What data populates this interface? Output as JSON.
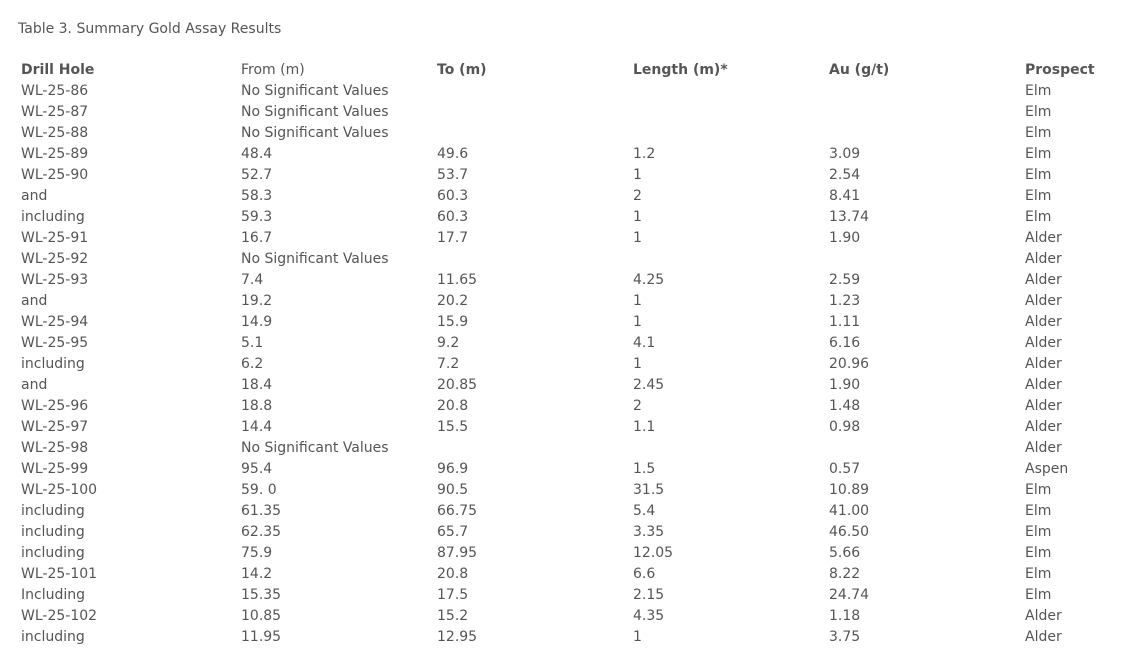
{
  "caption": "Table 3. Summary Gold Assay Results",
  "headers": {
    "drill_hole": "Drill Hole",
    "from": "From (m)",
    "to": "To (m)",
    "length": "Length (m)*",
    "au": "Au (g/t)",
    "prospect": "Prospect"
  },
  "no_values_text": "No Significant Values",
  "rows": [
    {
      "hole": "WL-25-86",
      "nsv": true,
      "prospect": "Elm"
    },
    {
      "hole": "WL-25-87",
      "nsv": true,
      "prospect": "Elm"
    },
    {
      "hole": "WL-25-88",
      "nsv": true,
      "prospect": "Elm"
    },
    {
      "hole": "WL-25-89",
      "from": "48.4",
      "to": "49.6",
      "length": "1.2",
      "au": "3.09",
      "prospect": "Elm"
    },
    {
      "hole": "WL-25-90",
      "from": "52.7",
      "to": "53.7",
      "length": "1",
      "au": "2.54",
      "prospect": "Elm"
    },
    {
      "hole": "and",
      "from": "58.3",
      "to": "60.3",
      "length": "2",
      "au": "8.41",
      "prospect": "Elm"
    },
    {
      "hole": "including",
      "from": "59.3",
      "to": "60.3",
      "length": "1",
      "au": "13.74",
      "prospect": "Elm"
    },
    {
      "hole": "WL-25-91",
      "from": "16.7",
      "to": "17.7",
      "length": "1",
      "au": "1.90",
      "prospect": "Alder"
    },
    {
      "hole": "WL-25-92",
      "nsv": true,
      "prospect": "Alder"
    },
    {
      "hole": "WL-25-93",
      "from": "7.4",
      "to": "11.65",
      "length": "4.25",
      "au": "2.59",
      "prospect": "Alder"
    },
    {
      "hole": "and",
      "from": "19.2",
      "to": "20.2",
      "length": "1",
      "au": "1.23",
      "prospect": "Alder"
    },
    {
      "hole": "WL-25-94",
      "from": "14.9",
      "to": "15.9",
      "length": "1",
      "au": "1.11",
      "prospect": "Alder"
    },
    {
      "hole": "WL-25-95",
      "from": "5.1",
      "to": "9.2",
      "length": "4.1",
      "au": "6.16",
      "prospect": "Alder"
    },
    {
      "hole": "including",
      "from": "6.2",
      "to": "7.2",
      "length": "1",
      "au": "20.96",
      "prospect": "Alder"
    },
    {
      "hole": "and",
      "from": "18.4",
      "to": "20.85",
      "length": "2.45",
      "au": "1.90",
      "prospect": "Alder"
    },
    {
      "hole": "WL-25-96",
      "from": "18.8",
      "to": "20.8",
      "length": "2",
      "au": "1.48",
      "prospect": "Alder"
    },
    {
      "hole": "WL-25-97",
      "from": "14.4",
      "to": "15.5",
      "length": "1.1",
      "au": "0.98",
      "prospect": "Alder"
    },
    {
      "hole": "WL-25-98",
      "nsv": true,
      "prospect": "Alder"
    },
    {
      "hole": "WL-25-99",
      "from": "95.4",
      "to": "96.9",
      "length": "1.5",
      "au": "0.57",
      "prospect": "Aspen"
    },
    {
      "hole": "WL-25-100",
      "from": "59. 0",
      "to": "90.5",
      "length": "31.5",
      "au": "10.89",
      "prospect": "Elm"
    },
    {
      "hole": "including",
      "from": "61.35",
      "to": "66.75",
      "length": "5.4",
      "au": "41.00",
      "prospect": "Elm"
    },
    {
      "hole": "including",
      "from": "62.35",
      "to": "65.7",
      "length": "3.35",
      "au": "46.50",
      "prospect": "Elm"
    },
    {
      "hole": "including",
      "from": "75.9",
      "to": "87.95",
      "length": "12.05",
      "au": "5.66",
      "prospect": "Elm"
    },
    {
      "hole": "WL-25-101",
      "from": "14.2",
      "to": "20.8",
      "length": "6.6",
      "au": "8.22",
      "prospect": "Elm"
    },
    {
      "hole": "Including",
      "from": "15.35",
      "to": "17.5",
      "length": "2.15",
      "au": "24.74",
      "prospect": "Elm"
    },
    {
      "hole": "WL-25-102",
      "from": "10.85",
      "to": "15.2",
      "length": "4.35",
      "au": "1.18",
      "prospect": "Alder"
    },
    {
      "hole": "including",
      "from": "11.95",
      "to": "12.95",
      "length": "1",
      "au": "3.75",
      "prospect": "Alder"
    }
  ]
}
